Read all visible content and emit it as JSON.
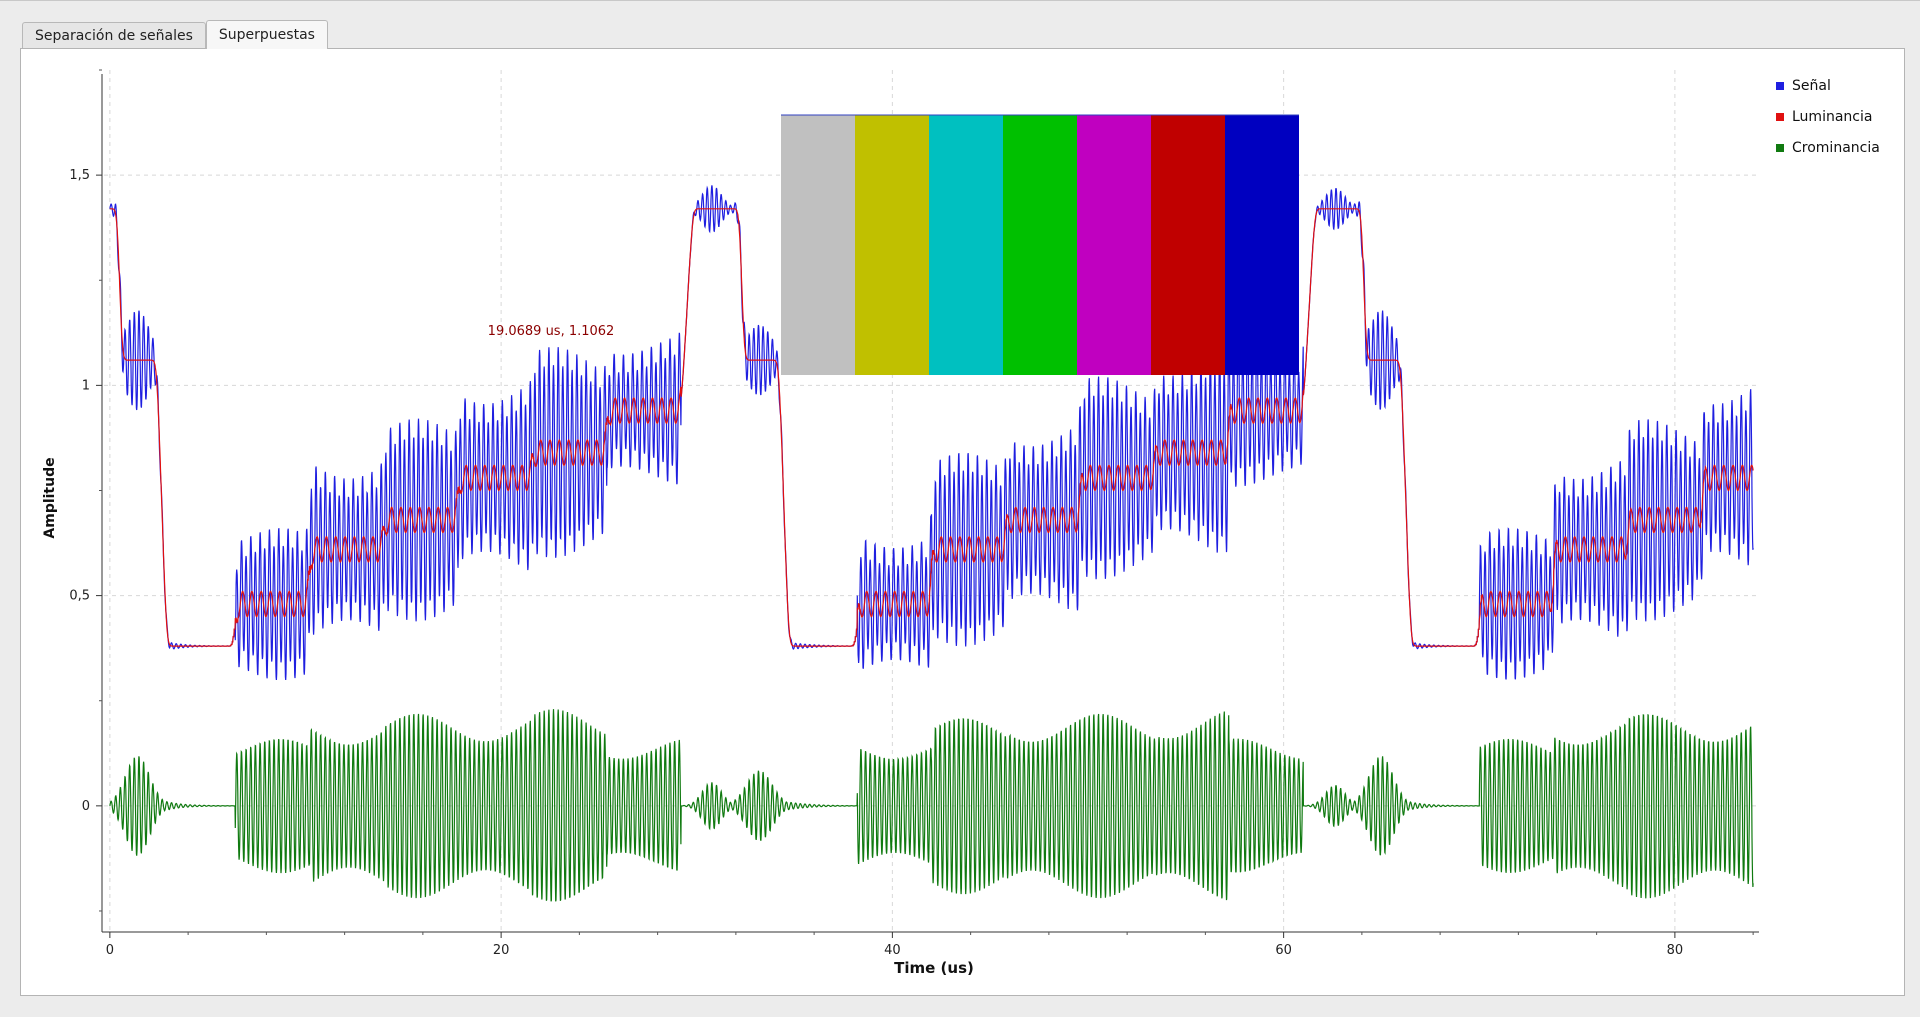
{
  "tabs": [
    {
      "label": "Separación de señales",
      "active": false
    },
    {
      "label": "Superpuestas",
      "active": true
    }
  ],
  "chart_data": {
    "type": "line",
    "title": "",
    "xlabel": "Time (us)",
    "ylabel": "Amplitude",
    "xlim": [
      -0.3,
      84.3
    ],
    "ylim": [
      -0.3,
      1.75
    ],
    "xticks": [
      0,
      20,
      40,
      60,
      80
    ],
    "xtick_labels": [
      "0",
      "20",
      "40",
      "60",
      "80"
    ],
    "yticks": [
      0,
      0.5,
      1,
      1.5
    ],
    "ytick_labels": [
      "0",
      "0,5",
      "1",
      "1,5"
    ],
    "grid": true,
    "legend_position": "top-right",
    "annotation": "19.0689 us, 1.1062",
    "line_period_us": 31.8,
    "sync_level": 0.38,
    "blank_level": 1.06,
    "burst_level": 1.42,
    "series": [
      {
        "name": "Señal",
        "color": "#1f1fe0"
      },
      {
        "name": "Luminancia",
        "color": "#e01010"
      },
      {
        "name": "Crominancia",
        "color": "#107a10"
      }
    ],
    "bar_levels": [
      {
        "start_us": 6.4,
        "end_us": 10.2,
        "luma": 0.48,
        "chroma_amplitude": 0.16
      },
      {
        "start_us": 10.2,
        "end_us": 14.0,
        "luma": 0.61,
        "chroma_amplitude": 0.21
      },
      {
        "start_us": 14.0,
        "end_us": 17.8,
        "luma": 0.68,
        "chroma_amplitude": 0.22
      },
      {
        "start_us": 17.8,
        "end_us": 21.6,
        "luma": 0.78,
        "chroma_amplitude": 0.22
      },
      {
        "start_us": 21.6,
        "end_us": 25.4,
        "luma": 0.84,
        "chroma_amplitude": 0.23
      },
      {
        "start_us": 25.4,
        "end_us": 29.2,
        "luma": 0.94,
        "chroma_amplitude": 0.16
      }
    ],
    "color_bars": [
      "#c0c0c0",
      "#c0c000",
      "#00c0c0",
      "#00c000",
      "#c000c0",
      "#c00000",
      "#0000c0"
    ]
  }
}
